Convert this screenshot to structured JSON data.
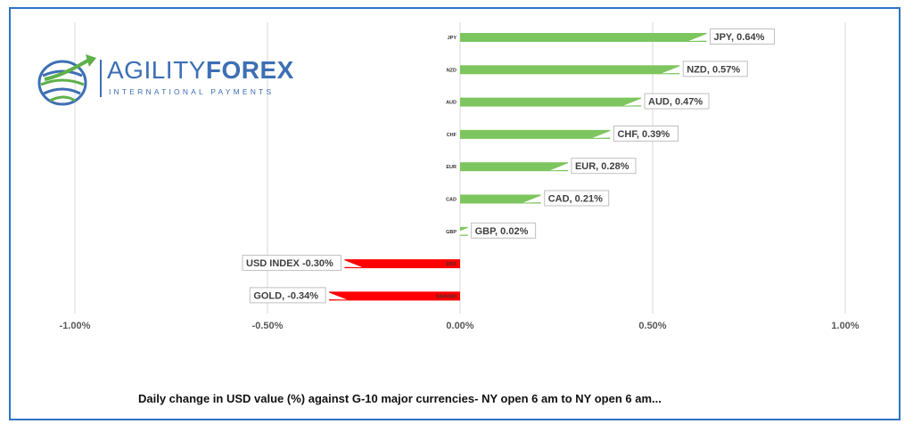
{
  "logo": {
    "brand_part1": "AGILITY",
    "brand_part2": "FOREX",
    "tagline": "INTERNATIONAL PAYMENTS",
    "colors": {
      "blue": "#3d6fb4",
      "green": "#5fb04a"
    }
  },
  "caption": "Daily change in  USD value (%)  against  G-10 major currencies- NY open 6 am to NY open 6 am...",
  "chart_data": {
    "type": "bar",
    "orientation": "horizontal",
    "categories": [
      "JPY",
      "NZD",
      "AUD",
      "CHF",
      "EUR",
      "CAD",
      "GBP",
      "DXY",
      "XAUUSD"
    ],
    "values": [
      0.64,
      0.57,
      0.47,
      0.39,
      0.28,
      0.21,
      0.02,
      -0.3,
      -0.34
    ],
    "data_labels": [
      "JPY, 0.64%",
      "NZD, 0.57%",
      "AUD, 0.47%",
      "CHF, 0.39%",
      "EUR, 0.28%",
      "CAD, 0.21%",
      "GBP, 0.02%",
      "USD INDEX -0.30%",
      "GOLD, -0.34%"
    ],
    "xlim": [
      -1.0,
      1.0
    ],
    "xticks": [
      -1.0,
      -0.5,
      0.0,
      0.5,
      1.0
    ],
    "xtick_labels": [
      "-1.00%",
      "-0.50%",
      "0.00%",
      "0.50%",
      "1.00%"
    ],
    "grid": "vertical",
    "colors": {
      "positive": "#7dc55e",
      "negative": "#ff0000",
      "grid": "#d9d9d9"
    }
  }
}
